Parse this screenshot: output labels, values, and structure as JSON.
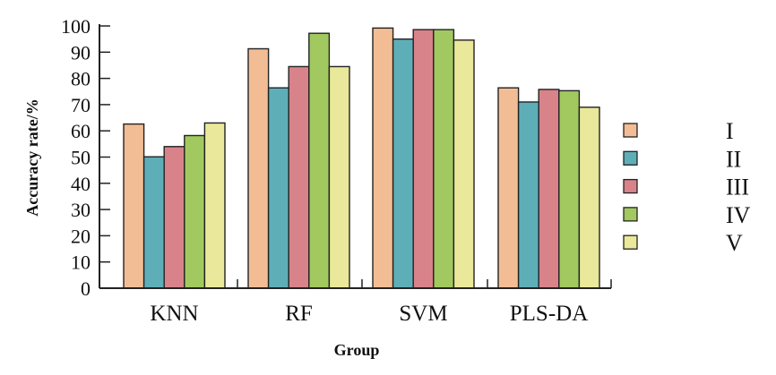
{
  "chart_data": {
    "type": "bar",
    "title": "",
    "xlabel": "Group",
    "ylabel": "Accuracy rate/%",
    "ylim": [
      0,
      100
    ],
    "yticks": [
      0,
      10,
      20,
      30,
      40,
      50,
      60,
      70,
      80,
      90,
      100
    ],
    "grid": false,
    "legend_position": "right",
    "categories": [
      "KNN",
      "RF",
      "SVM",
      "PLS-DA"
    ],
    "series": [
      {
        "name": "I",
        "color": "#f2bd94",
        "values": [
          62.6,
          91.3,
          99.2,
          76.4
        ]
      },
      {
        "name": "II",
        "color": "#5eaeb8",
        "values": [
          50.1,
          76.4,
          95.0,
          71.0
        ]
      },
      {
        "name": "III",
        "color": "#d8838a",
        "values": [
          54.0,
          84.5,
          98.6,
          75.8
        ]
      },
      {
        "name": "IV",
        "color": "#a2c960",
        "values": [
          58.2,
          97.2,
          98.6,
          75.3
        ]
      },
      {
        "name": "V",
        "color": "#eae89a",
        "values": [
          63.0,
          84.5,
          94.6,
          69.0
        ]
      }
    ]
  }
}
